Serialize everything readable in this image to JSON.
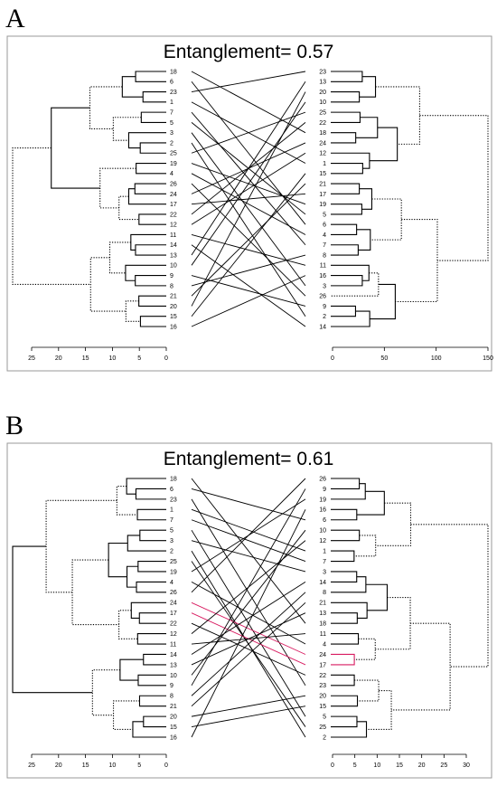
{
  "colors": {
    "highlight": "#d81b60",
    "line": "#000000",
    "frame": "#999999"
  },
  "panels": [
    {
      "letter": "A",
      "entanglement_label": "Entanglement= 0.57",
      "left": {
        "order": [
          "18",
          "6",
          "23",
          "1",
          "7",
          "5",
          "3",
          "2",
          "25",
          "19",
          "4",
          "26",
          "24",
          "17",
          "22",
          "12",
          "11",
          "14",
          "13",
          "10",
          "9",
          "8",
          "21",
          "20",
          "15",
          "16"
        ],
        "axis_ticks": [
          "25",
          "20",
          "15",
          "10",
          "5",
          "0"
        ]
      },
      "right": {
        "order": [
          "23",
          "13",
          "20",
          "10",
          "25",
          "22",
          "18",
          "24",
          "12",
          "1",
          "15",
          "21",
          "17",
          "19",
          "5",
          "6",
          "4",
          "7",
          "8",
          "11",
          "16",
          "3",
          "26",
          "9",
          "2",
          "14"
        ],
        "axis_ticks": [
          "0",
          "50",
          "100",
          "150"
        ]
      }
    },
    {
      "letter": "B",
      "entanglement_label": "Entanglement= 0.61",
      "left": {
        "order": [
          "18",
          "6",
          "23",
          "1",
          "7",
          "5",
          "3",
          "2",
          "25",
          "19",
          "4",
          "26",
          "24",
          "17",
          "22",
          "12",
          "11",
          "14",
          "13",
          "10",
          "9",
          "8",
          "21",
          "20",
          "15",
          "16"
        ],
        "axis_ticks": [
          "25",
          "20",
          "15",
          "10",
          "5",
          "0"
        ]
      },
      "right": {
        "order": [
          "26",
          "9",
          "19",
          "16",
          "6",
          "10",
          "12",
          "1",
          "7",
          "3",
          "14",
          "8",
          "21",
          "13",
          "18",
          "11",
          "4",
          "24",
          "17",
          "22",
          "23",
          "20",
          "15",
          "5",
          "25",
          "2"
        ],
        "axis_ticks": [
          "0",
          "5",
          "10",
          "15",
          "20",
          "25",
          "30"
        ]
      },
      "highlight_leaves": [
        "24",
        "17"
      ]
    }
  ]
}
